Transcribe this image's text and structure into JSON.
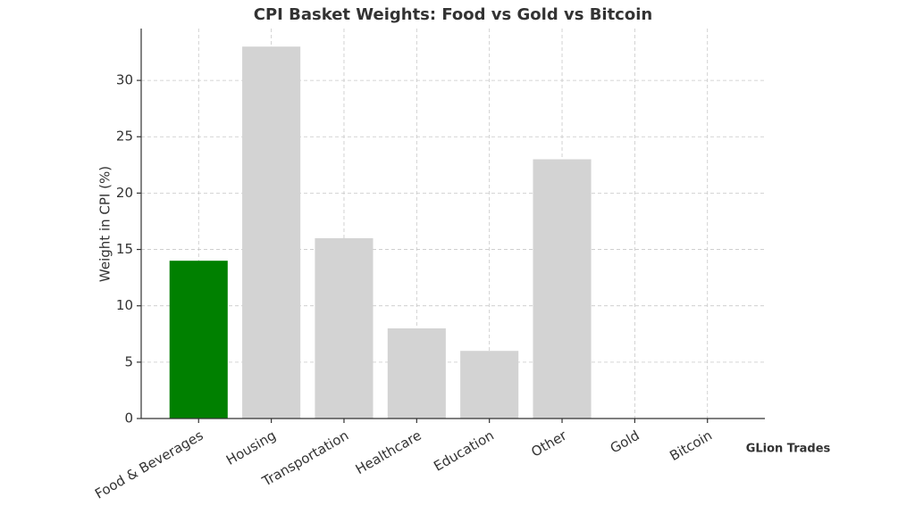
{
  "chart_data": {
    "type": "bar",
    "title": "CPI Basket Weights: Food vs Gold vs Bitcoin",
    "ylabel": "Weight in CPI (%)",
    "annotation": "GLion Trades",
    "categories": [
      "Food & Beverages",
      "Housing",
      "Transportation",
      "Healthcare",
      "Education",
      "Other",
      "Gold",
      "Bitcoin"
    ],
    "values": [
      14,
      33,
      16,
      8,
      6,
      23,
      0,
      0
    ],
    "colors": [
      "#008000",
      "#d3d3d3",
      "#d3d3d3",
      "#d3d3d3",
      "#d3d3d3",
      "#d3d3d3",
      "#d3d3d3",
      "#d3d3d3"
    ],
    "ylim": [
      0,
      34.6
    ],
    "yticks": [
      0,
      5,
      10,
      15,
      20,
      25,
      30
    ],
    "grid": true
  }
}
